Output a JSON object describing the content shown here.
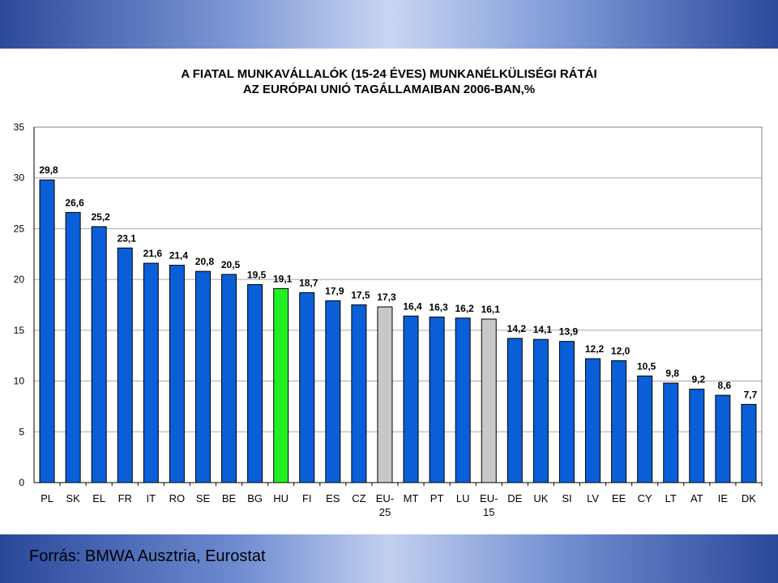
{
  "source": "Forrás: BMWA Ausztria, Eurostat",
  "colors": {
    "bar": "#0a5fd8",
    "highlight": "#22ee22",
    "aggregate": "#c8c8c8",
    "outline": "#000000"
  },
  "chart_data": {
    "type": "bar",
    "title": [
      "A FIATAL MUNKAVÁLLALÓK (15-24 ÉVES) MUNKANÉLKÜLISÉGI RÁTÁI",
      "AZ EURÓPAI UNIÓ TAGÁLLAMAIBAN 2006-BAN,%"
    ],
    "xlabel": "",
    "ylabel": "",
    "ylim": [
      0,
      35
    ],
    "yticks": [
      "0",
      "5",
      "10",
      "15",
      "20",
      "25",
      "30",
      "35"
    ],
    "grid": true,
    "categories": [
      [
        "PL"
      ],
      [
        "SK"
      ],
      [
        "EL"
      ],
      [
        "FR"
      ],
      [
        "IT"
      ],
      [
        "RO"
      ],
      [
        "SE"
      ],
      [
        "BE"
      ],
      [
        "BG"
      ],
      [
        "HU"
      ],
      [
        "FI"
      ],
      [
        "ES"
      ],
      [
        "CZ"
      ],
      [
        "EU-",
        "25"
      ],
      [
        "MT"
      ],
      [
        "PT"
      ],
      [
        "LU"
      ],
      [
        "EU-",
        "15"
      ],
      [
        "DE"
      ],
      [
        "UK"
      ],
      [
        "SI"
      ],
      [
        "LV"
      ],
      [
        "EE"
      ],
      [
        "CY"
      ],
      [
        "LT"
      ],
      [
        "AT"
      ],
      [
        "IE"
      ],
      [
        "DK"
      ]
    ],
    "values": [
      29.8,
      26.6,
      25.2,
      23.1,
      21.6,
      21.4,
      20.8,
      20.5,
      19.5,
      19.1,
      18.7,
      17.9,
      17.5,
      17.3,
      16.4,
      16.3,
      16.2,
      16.1,
      14.2,
      14.1,
      13.9,
      12.2,
      12.0,
      10.5,
      9.8,
      9.2,
      8.6,
      7.7
    ],
    "labels": [
      "29,8",
      "26,6",
      "25,2",
      "23,1",
      "21,6",
      "21,4",
      "20,8",
      "20,5",
      "19,5",
      "19,1",
      "18,7",
      "17,9",
      "17,5",
      "17,3",
      "16,4",
      "16,3",
      "16,2",
      "16,1",
      "14,2",
      "14,1",
      "13,9",
      "12,2",
      "12,0",
      "10,5",
      "9,8",
      "9,2",
      "8,6",
      "7,7"
    ],
    "highlight": [
      "HU"
    ],
    "aggregates": [
      "EU-25",
      "EU-15"
    ]
  }
}
